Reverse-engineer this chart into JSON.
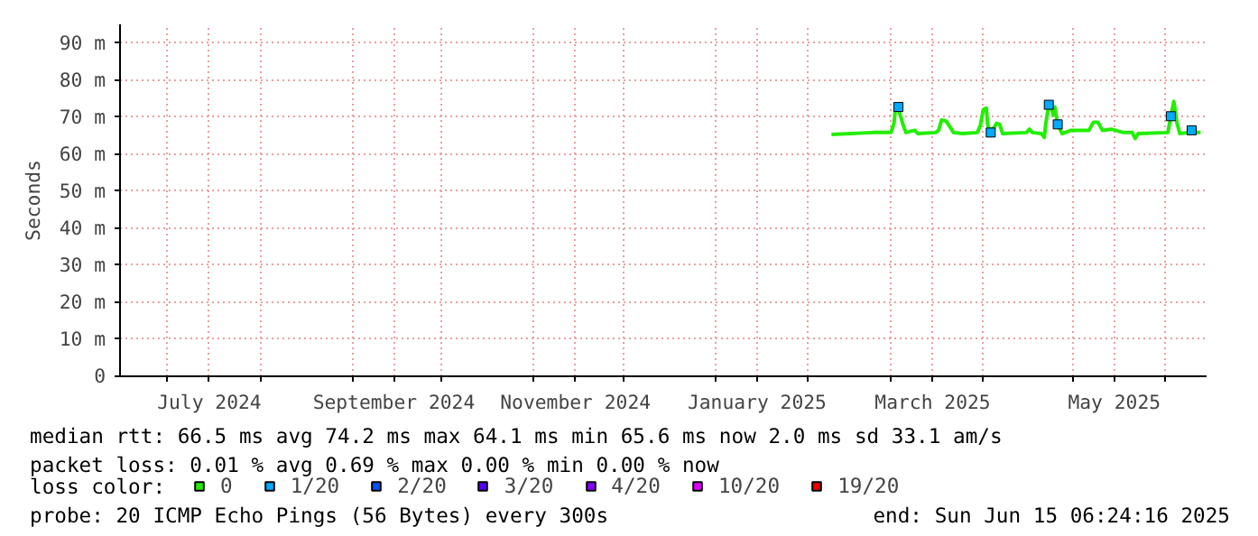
{
  "chart_data": {
    "type": "line",
    "ylabel": "Seconds",
    "legend_title": "loss color:",
    "xlim": [
      "2024-06-15",
      "2025-06-15"
    ],
    "xticks": [
      {
        "value": "2024-07-01",
        "label": null
      },
      {
        "value": "2024-07-15",
        "label": "July 2024"
      },
      {
        "value": "2024-08-01",
        "label": null
      },
      {
        "value": "2024-09-01",
        "label": null
      },
      {
        "value": "2024-09-15",
        "label": "September 2024"
      },
      {
        "value": "2024-10-01",
        "label": null
      },
      {
        "value": "2024-11-01",
        "label": null
      },
      {
        "value": "2024-11-15",
        "label": "November 2024"
      },
      {
        "value": "2024-12-01",
        "label": null
      },
      {
        "value": "2025-01-01",
        "label": null
      },
      {
        "value": "2025-01-15",
        "label": "January 2025"
      },
      {
        "value": "2025-02-01",
        "label": null
      },
      {
        "value": "2025-03-01",
        "label": null
      },
      {
        "value": "2025-03-15",
        "label": "March 2025"
      },
      {
        "value": "2025-04-01",
        "label": null
      },
      {
        "value": "2025-05-01",
        "label": null
      },
      {
        "value": "2025-05-15",
        "label": "May 2025"
      },
      {
        "value": "2025-06-01",
        "label": null
      }
    ],
    "ylim": [
      0,
      95
    ],
    "yticks": [
      0,
      {
        "value": 10,
        "label": "10 m"
      },
      {
        "value": 20,
        "label": "20 m"
      },
      {
        "value": 30,
        "label": "30 m"
      },
      {
        "value": 40,
        "label": "40 m"
      },
      {
        "value": 50,
        "label": "50 m"
      },
      {
        "value": 60,
        "label": "60 m"
      },
      {
        "value": 70,
        "label": "70 m"
      },
      {
        "value": 80,
        "label": "80 m"
      },
      {
        "value": 90,
        "label": "90 m"
      }
    ],
    "grid": true,
    "legend": "bottom",
    "line_style": "solid",
    "series": [
      {
        "name": "0",
        "color": "#22ee00",
        "x": [
          "2025-02-09",
          "2025-02-23",
          "2025-03-01",
          "2025-03-02",
          "2025-03-02T12:00",
          "2025-03-03T12:00",
          "2025-03-04",
          "2025-03-05",
          "2025-03-06",
          "2025-03-09",
          "2025-03-10",
          "2025-03-16",
          "2025-03-17",
          "2025-03-18",
          "2025-03-19T12:00",
          "2025-03-20T12:00",
          "2025-03-22",
          "2025-03-25",
          "2025-03-30",
          "2025-03-31",
          "2025-04-01",
          "2025-04-02",
          "2025-04-02T12:00",
          "2025-04-03T12:00",
          "2025-04-05T12:00",
          "2025-04-06T12:00",
          "2025-04-07T12:00",
          "2025-04-15T12:00",
          "2025-04-16T12:00",
          "2025-04-17T12:00",
          "2025-04-20T12:00",
          "2025-04-21T12:00",
          "2025-04-22",
          "2025-04-23",
          "2025-04-23T12:00",
          "2025-04-24T12:00",
          "2025-04-25",
          "2025-04-26",
          "2025-04-27T12:00",
          "2025-04-30T12:00",
          "2025-05-06T12:00",
          "2025-05-08",
          "2025-05-09T12:00",
          "2025-05-11",
          "2025-05-14",
          "2025-05-18",
          "2025-05-21",
          "2025-05-22",
          "2025-05-23",
          "2025-06-02",
          "2025-06-03",
          "2025-06-04",
          "2025-06-05",
          "2025-06-06",
          "2025-06-09",
          "2025-06-10",
          "2025-06-11",
          "2025-06-13"
        ],
        "values": [
          65.3,
          65.8,
          65.8,
          68.3,
          72.4,
          72.7,
          70.8,
          68.0,
          65.8,
          66.4,
          65.5,
          65.8,
          66.4,
          69.2,
          68.9,
          67.7,
          65.8,
          65.5,
          65.8,
          67.7,
          72.0,
          72.4,
          67.7,
          65.8,
          68.3,
          68.0,
          65.5,
          65.8,
          66.7,
          65.8,
          65.5,
          64.5,
          68.3,
          73.3,
          73.6,
          70.5,
          72.7,
          68.0,
          65.5,
          66.4,
          66.4,
          68.6,
          68.6,
          66.4,
          66.7,
          65.8,
          65.8,
          64.2,
          65.5,
          65.8,
          70.2,
          74.2,
          68.6,
          65.5,
          65.8,
          66.4,
          65.8,
          65.8
        ]
      },
      {
        "name": "1/20",
        "color": "#00aaff",
        "type": "scatter",
        "marker": "square",
        "x": [
          "2025-03-03T12:00",
          "2025-04-03T12:00",
          "2025-04-23",
          "2025-04-26",
          "2025-06-03",
          "2025-06-10"
        ],
        "values": [
          72.7,
          65.8,
          73.3,
          68.0,
          70.2,
          66.4
        ]
      },
      {
        "name": "2/20",
        "color": "#0055ff",
        "type": "scatter",
        "marker": "square"
      },
      {
        "name": "3/20",
        "color": "#5500ff",
        "type": "scatter",
        "marker": "square"
      },
      {
        "name": "4/20",
        "color": "#8800ff",
        "type": "scatter",
        "marker": "square"
      },
      {
        "name": "10/20",
        "color": "#dd00ff",
        "type": "scatter",
        "marker": "square"
      },
      {
        "name": "19/20",
        "color": "#ee0000",
        "type": "scatter",
        "marker": "square"
      }
    ],
    "annotations": [
      "median rtt:  66.5 ms avg  74.2 ms max  64.1 ms min  65.6 ms now  2.0 ms sd  33.1   am/s",
      "packet loss: 0.01 % avg  0.69 % max  0.00 % min  0.00 % now",
      "probe:       20 ICMP Echo Pings (56 Bytes) every 300s",
      "end: Sun Jun 15 06:24:16 2025"
    ]
  }
}
